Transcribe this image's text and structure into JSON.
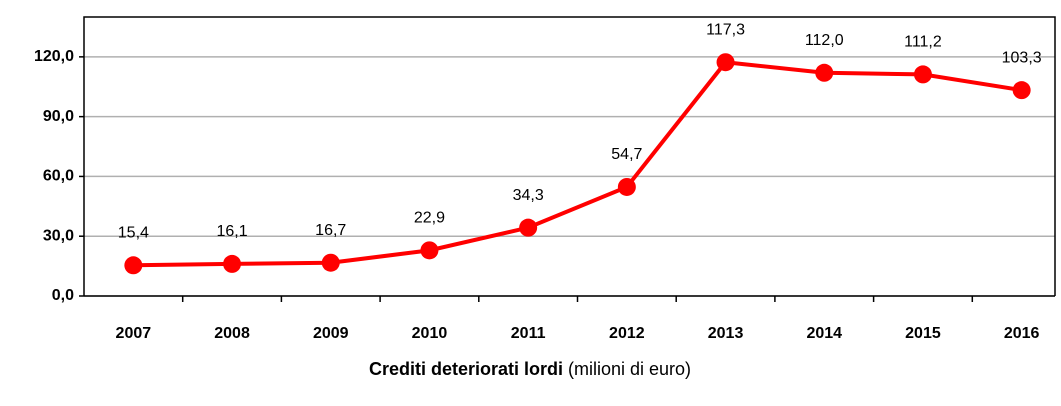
{
  "chart_data": {
    "type": "line",
    "title": "Crediti deteriorati lordi",
    "subtitle": "(milioni di euro)",
    "categories": [
      "2007",
      "2008",
      "2009",
      "2010",
      "2011",
      "2012",
      "2013",
      "2014",
      "2015",
      "2016"
    ],
    "series": [
      {
        "name": "Crediti deteriorati lordi",
        "color": "#ff0000",
        "values": [
          15.4,
          16.1,
          16.7,
          22.9,
          34.3,
          54.7,
          117.3,
          112.0,
          111.2,
          103.3
        ],
        "value_labels": [
          "15,4",
          "16,1",
          "16,7",
          "22,9",
          "34,3",
          "54,7",
          "117,3",
          "112,0",
          "111,2",
          "103,3"
        ]
      }
    ],
    "ylim": [
      0,
      140
    ],
    "yticks": [
      {
        "value": 0,
        "label": "0,0"
      },
      {
        "value": 30,
        "label": "30,0"
      },
      {
        "value": 60,
        "label": "60,0"
      },
      {
        "value": 90,
        "label": "90,0"
      },
      {
        "value": 120,
        "label": "120,0"
      }
    ],
    "grid": true
  }
}
